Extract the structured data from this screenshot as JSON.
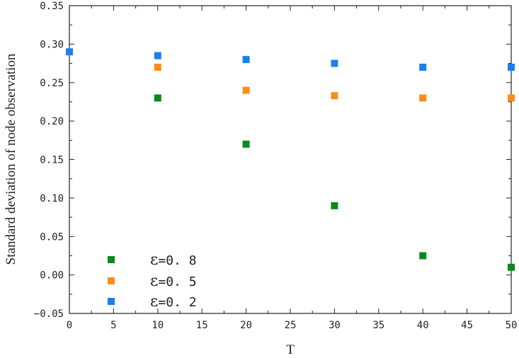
{
  "chart_data": {
    "type": "scatter",
    "title": "",
    "xlabel": "T",
    "ylabel": "Standard deviation of node observation",
    "xlim": [
      0,
      50
    ],
    "ylim": [
      -0.05,
      0.35
    ],
    "xticks": [
      "0",
      "5",
      "10",
      "15",
      "20",
      "25",
      "30",
      "35",
      "40",
      "45",
      "50"
    ],
    "yticks": [
      "−0.05",
      "0.00",
      "0.05",
      "0.10",
      "0.15",
      "0.20",
      "0.25",
      "0.30",
      "0.35"
    ],
    "grid": false,
    "legend_position": "bottom-left",
    "series": [
      {
        "name_symbol": "ε",
        "name_value": "=0. 8",
        "color": "#0a8a1a",
        "marker": "square",
        "x": [
          10,
          20,
          30,
          40,
          50
        ],
        "y": [
          0.23,
          0.17,
          0.09,
          0.025,
          0.01
        ]
      },
      {
        "name_symbol": "ε",
        "name_value": "=0. 5",
        "color": "#ff8c1a",
        "marker": "square",
        "x": [
          10,
          20,
          30,
          40,
          50
        ],
        "y": [
          0.27,
          0.24,
          0.233,
          0.23,
          0.23
        ]
      },
      {
        "name_symbol": "ε",
        "name_value": "=0. 2",
        "color": "#1a7ff0",
        "marker": "square",
        "x": [
          0,
          10,
          20,
          30,
          40,
          50
        ],
        "y": [
          0.29,
          0.285,
          0.28,
          0.275,
          0.27,
          0.27
        ]
      }
    ]
  }
}
